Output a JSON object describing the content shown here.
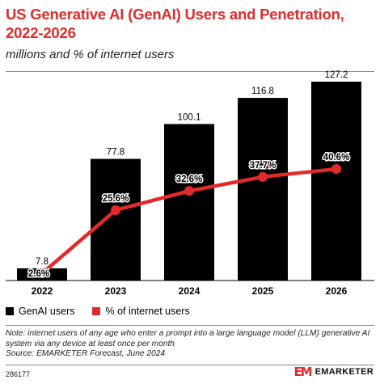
{
  "header": {
    "title": "US Generative AI (GenAI) Users and Penetration, 2022-2026",
    "subtitle": "millions and % of internet users"
  },
  "chart_data": {
    "type": "bar",
    "categories": [
      "2022",
      "2023",
      "2024",
      "2025",
      "2026"
    ],
    "series": [
      {
        "name": "GenAI users",
        "type": "bar",
        "values": [
          7.8,
          77.8,
          100.1,
          116.8,
          127.2
        ],
        "labels": [
          "7.8",
          "77.8",
          "100.1",
          "116.8",
          "127.2"
        ],
        "color": "#000000"
      },
      {
        "name": "% of internet users",
        "type": "line",
        "values": [
          2.6,
          25.6,
          32.6,
          37.7,
          40.6
        ],
        "labels": [
          "2.6%",
          "25.6%",
          "32.6%",
          "37.7%",
          "40.6%"
        ],
        "color": "#e32a2b"
      }
    ],
    "ylim": [
      0,
      127.2
    ],
    "grid": false,
    "legend_position": "bottom-left"
  },
  "legend": {
    "bars_label": "GenAI users",
    "line_label": "% of internet users"
  },
  "footer": {
    "note": "Note: internet users of any age who enter a prompt into a large language model (LLM) generative AI system via any device at least once per month",
    "source": "Source: EMARKETER Forecast, June 2024",
    "code": "286177",
    "brand_mark": "EM",
    "brand_name": "EMARKETER"
  },
  "colors": {
    "accent": "#e32a2b",
    "bar": "#000000"
  }
}
